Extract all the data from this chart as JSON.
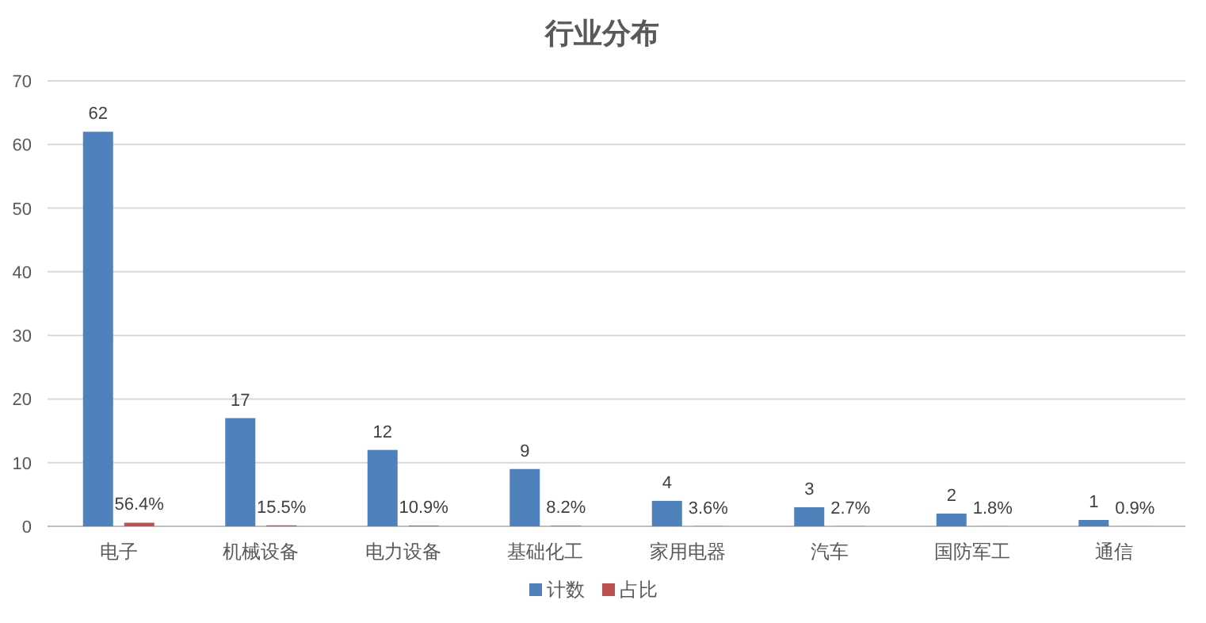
{
  "chart_data": {
    "type": "bar",
    "title": "行业分布",
    "categories": [
      "电子",
      "机械设备",
      "电力设备",
      "基础化工",
      "家用电器",
      "汽车",
      "国防军工",
      "通信"
    ],
    "series": [
      {
        "name": "计数",
        "color": "#4f81bd",
        "values": [
          62,
          17,
          12,
          9,
          4,
          3,
          2,
          1
        ],
        "value_labels": [
          "62",
          "17",
          "12",
          "9",
          "4",
          "3",
          "2",
          "1"
        ]
      },
      {
        "name": "占比",
        "color": "#c0504d",
        "values": [
          0.564,
          0.155,
          0.109,
          0.082,
          0.036,
          0.027,
          0.018,
          0.009
        ],
        "value_labels": [
          "56.4%",
          "15.5%",
          "10.9%",
          "8.2%",
          "3.6%",
          "2.7%",
          "1.8%",
          "0.9%"
        ]
      }
    ],
    "ylim": [
      0,
      70
    ],
    "yticks": [
      0,
      10,
      20,
      30,
      40,
      50,
      60,
      70
    ],
    "grid": "y",
    "legend": "bottom"
  }
}
